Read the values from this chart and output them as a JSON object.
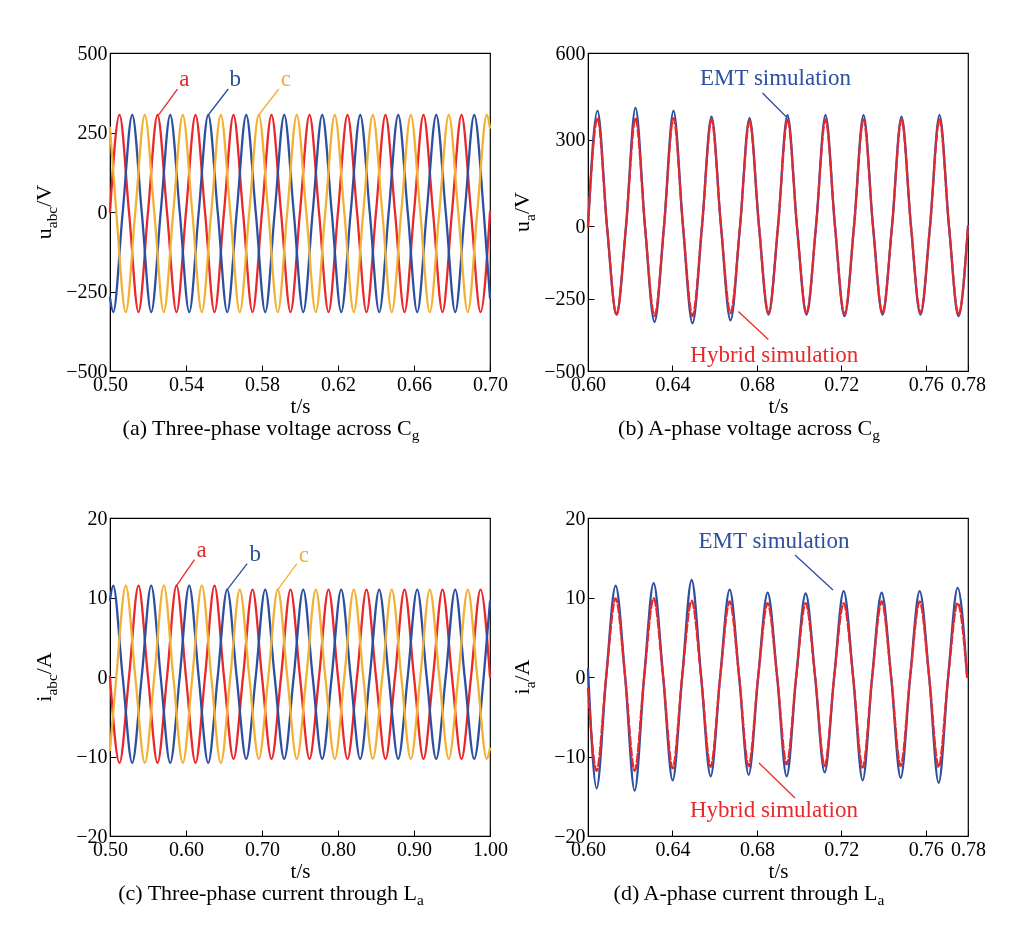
{
  "chart_data": [
    {
      "type": "line",
      "title": "(a) Three-phase voltage across C$_{g}$",
      "xlabel": "t/s",
      "ylabel": "u$_{abc}$/V",
      "xlim": [
        0.5,
        0.7
      ],
      "xticks": [
        {
          "value": 0.5,
          "label": "0.50"
        },
        0.54,
        0.58,
        0.62,
        0.66,
        {
          "value": 0.7,
          "label": "0.70"
        }
      ],
      "ylim": [
        -500,
        500
      ],
      "yticks": [
        {
          "value": -500,
          "label": "−500"
        },
        {
          "value": -250,
          "label": "−250"
        },
        0,
        250,
        500
      ],
      "series": [
        {
          "color": "#e8282a",
          "x": [
            0.5,
            0.505,
            0.51,
            0.515,
            0.52,
            0.525,
            0.53,
            0.535,
            0.54,
            0.545,
            0.55,
            0.555,
            0.56,
            0.565,
            0.57,
            0.575,
            0.58,
            0.585,
            0.59,
            0.595,
            0.6,
            0.605,
            0.61,
            0.615,
            0.62,
            0.625,
            0.63,
            0.635,
            0.64,
            0.645,
            0.65,
            0.655,
            0.66,
            0.665,
            0.67,
            0.675,
            0.68,
            0.685,
            0.69,
            0.695,
            0.7
          ],
          "values": [
            0,
            305,
            0,
            -315,
            0,
            305,
            0,
            -315,
            0,
            305,
            0,
            -315,
            0,
            305,
            0,
            -315,
            0,
            305,
            0,
            -315,
            0,
            305,
            0,
            -315,
            0,
            305,
            0,
            -315,
            0,
            305,
            0,
            -315,
            0,
            305,
            0,
            -315,
            0,
            305,
            0,
            -315,
            0
          ]
        },
        {
          "color": "#2c4fa0",
          "x": [
            0.5,
            0.5017,
            0.5067,
            0.5117,
            0.5167,
            0.5217,
            0.5267,
            0.5317,
            0.5367,
            0.5417,
            0.5467,
            0.5517,
            0.5567,
            0.5617,
            0.5667,
            0.5717,
            0.5767,
            0.5817,
            0.5867,
            0.5917,
            0.5967,
            0.6017,
            0.6067,
            0.6117,
            0.6167,
            0.6217,
            0.6267,
            0.6317,
            0.6367,
            0.6417,
            0.6467,
            0.6517,
            0.6567,
            0.6617,
            0.6667,
            0.6717,
            0.6767,
            0.6817,
            0.6867,
            0.6917,
            0.6967,
            0.7
          ],
          "values": [
            -270,
            -315,
            0,
            305,
            0,
            -315,
            0,
            305,
            0,
            -315,
            0,
            305,
            0,
            -315,
            0,
            305,
            0,
            -315,
            0,
            305,
            0,
            -315,
            0,
            305,
            0,
            -315,
            0,
            305,
            0,
            -315,
            0,
            305,
            0,
            -315,
            0,
            305,
            0,
            -315,
            0,
            305,
            0,
            -270
          ]
        },
        {
          "color": "#f2b134",
          "x": [
            0.5,
            0.5033,
            0.5083,
            0.5133,
            0.5183,
            0.5233,
            0.5283,
            0.5333,
            0.5383,
            0.5433,
            0.5483,
            0.5533,
            0.5583,
            0.5633,
            0.5683,
            0.5733,
            0.5783,
            0.5833,
            0.5883,
            0.5933,
            0.5983,
            0.6033,
            0.6083,
            0.6133,
            0.6183,
            0.6233,
            0.6283,
            0.6333,
            0.6383,
            0.6433,
            0.6483,
            0.6533,
            0.6583,
            0.6633,
            0.6683,
            0.6733,
            0.6783,
            0.6833,
            0.6883,
            0.6933,
            0.6983,
            0.7
          ],
          "values": [
            265,
            0,
            -315,
            0,
            305,
            0,
            -315,
            0,
            305,
            0,
            -315,
            0,
            305,
            0,
            -315,
            0,
            305,
            0,
            -315,
            0,
            305,
            0,
            -315,
            0,
            305,
            0,
            -315,
            0,
            305,
            0,
            -315,
            0,
            305,
            0,
            -315,
            0,
            305,
            0,
            -315,
            0,
            305,
            265
          ]
        }
      ],
      "annotations": [
        {
          "text": "a",
          "x": 0.5255,
          "y": 305
        },
        {
          "text": "b",
          "x": 0.5517,
          "y": 305
        },
        {
          "text": "c",
          "x": 0.5783,
          "y": 305
        }
      ]
    },
    {
      "type": "line",
      "title": "(b) A-phase voltage across C$_{g}$",
      "xlabel": "t/s",
      "ylabel": "u$_{a}$/V",
      "xlim": [
        0.6,
        0.78
      ],
      "xticks": [
        {
          "value": 0.6,
          "label": "0.60"
        },
        0.64,
        0.68,
        0.72,
        0.76,
        0.78
      ],
      "ylim": [
        -500,
        600
      ],
      "yticks": [
        {
          "value": -500,
          "label": "−500"
        },
        {
          "value": -250,
          "label": "−250"
        },
        0,
        300,
        600
      ],
      "series": [
        {
          "color": "#2c4fa0",
          "line_style": "solid",
          "x": [
            0.6,
            0.6045,
            0.609,
            0.6135,
            0.618,
            0.6225,
            0.627,
            0.6315,
            0.636,
            0.6405,
            0.645,
            0.6495,
            0.654,
            0.6585,
            0.663,
            0.6675,
            0.672,
            0.6765,
            0.681,
            0.6855,
            0.69,
            0.6945,
            0.699,
            0.7035,
            0.708,
            0.7125,
            0.717,
            0.7215,
            0.726,
            0.7305,
            0.735,
            0.7395,
            0.744,
            0.7485,
            0.753,
            0.7575,
            0.762,
            0.7665,
            0.771,
            0.7755,
            0.78
          ],
          "values": [
            0,
            400,
            0,
            -305,
            0,
            410,
            0,
            -330,
            0,
            400,
            0,
            -335,
            0,
            380,
            0,
            -325,
            0,
            375,
            0,
            -305,
            0,
            385,
            0,
            -305,
            0,
            385,
            0,
            -310,
            0,
            385,
            0,
            -305,
            0,
            380,
            0,
            -305,
            0,
            385,
            0,
            -310,
            0
          ]
        },
        {
          "color": "#e8282a",
          "line_style": "dashed",
          "x": [
            0.6,
            0.6045,
            0.609,
            0.6135,
            0.618,
            0.6225,
            0.627,
            0.6315,
            0.636,
            0.6405,
            0.645,
            0.6495,
            0.654,
            0.6585,
            0.663,
            0.6675,
            0.672,
            0.6765,
            0.681,
            0.6855,
            0.69,
            0.6945,
            0.699,
            0.7035,
            0.708,
            0.7125,
            0.717,
            0.7215,
            0.726,
            0.7305,
            0.735,
            0.7395,
            0.744,
            0.7485,
            0.753,
            0.7575,
            0.762,
            0.7665,
            0.771,
            0.7755,
            0.78
          ],
          "values": [
            0,
            375,
            0,
            -305,
            0,
            375,
            0,
            -310,
            0,
            375,
            0,
            -310,
            0,
            370,
            0,
            -300,
            0,
            365,
            0,
            -300,
            0,
            370,
            0,
            -300,
            0,
            370,
            0,
            -305,
            0,
            370,
            0,
            -300,
            0,
            370,
            0,
            -300,
            0,
            370,
            0,
            -305,
            0
          ]
        }
      ],
      "annotations": [
        {
          "text": "EMT  simulation",
          "x": 0.6945,
          "y": 375
        },
        {
          "text": "Hybrid  simulation",
          "x": 0.6712,
          "y": -294
        }
      ]
    },
    {
      "type": "line",
      "title": "(c) Three-phase current through L$_{a}$",
      "xlabel": "t/s",
      "ylabel": "i$_{abc}$/A",
      "xlim": [
        0.5,
        1.0
      ],
      "xticks": [
        {
          "value": 0.5,
          "label": "0.50"
        },
        {
          "value": 0.6,
          "label": "0.60"
        },
        {
          "value": 0.7,
          "label": "0.70"
        },
        {
          "value": 0.8,
          "label": "0.80"
        },
        {
          "value": 0.9,
          "label": "0.90"
        },
        {
          "value": 1.0,
          "label": "1.00"
        }
      ],
      "ylim": [
        -20,
        20
      ],
      "yticks": [
        {
          "value": -20,
          "label": "−20"
        },
        {
          "value": -10,
          "label": "−10"
        },
        0,
        10,
        20
      ],
      "series": [
        {
          "color": "#e8282a",
          "x": [
            0.5,
            0.5125,
            0.525,
            0.5375,
            0.55,
            0.5625,
            0.575,
            0.5875,
            0.6,
            0.6125,
            0.625,
            0.6375,
            0.65,
            0.6625,
            0.675,
            0.6875,
            0.7,
            0.7125,
            0.725,
            0.7375,
            0.75,
            0.7625,
            0.775,
            0.7875,
            0.8,
            0.8125,
            0.825,
            0.8375,
            0.85,
            0.8625,
            0.875,
            0.8875,
            0.9,
            0.9125,
            0.925,
            0.9375,
            0.95,
            0.9625,
            0.975,
            0.9875,
            1.0
          ],
          "values": [
            0,
            -10.8,
            0,
            11.5,
            0,
            -10.8,
            0,
            11.5,
            0,
            -10.8,
            0,
            11.5,
            0,
            -10.3,
            0,
            11,
            0,
            -10.3,
            0,
            11,
            0,
            -10.3,
            0,
            11,
            0,
            -10.3,
            0,
            11,
            0,
            -10.3,
            0,
            11,
            0,
            -10.3,
            0,
            11,
            0,
            -10.3,
            0,
            11,
            0
          ]
        },
        {
          "color": "#2c4fa0",
          "x": [
            0.5,
            0.5042,
            0.5167,
            0.5292,
            0.5417,
            0.5542,
            0.5667,
            0.5792,
            0.5917,
            0.6042,
            0.6167,
            0.6292,
            0.6417,
            0.6542,
            0.6667,
            0.6792,
            0.6917,
            0.7042,
            0.7167,
            0.7292,
            0.7417,
            0.7542,
            0.7667,
            0.7792,
            0.7917,
            0.8042,
            0.8167,
            0.8292,
            0.8417,
            0.8542,
            0.8667,
            0.8792,
            0.8917,
            0.9042,
            0.9167,
            0.9292,
            0.9417,
            0.9542,
            0.9667,
            0.9792,
            0.9917,
            1.0
          ],
          "values": [
            9.7,
            11.5,
            0,
            -10.8,
            0,
            11.5,
            0,
            -10.8,
            0,
            11.5,
            0,
            -10.8,
            0,
            11,
            0,
            -10.3,
            0,
            11,
            0,
            -10.3,
            0,
            11,
            0,
            -10.3,
            0,
            11,
            0,
            -10.3,
            0,
            11,
            0,
            -10.3,
            0,
            11,
            0,
            -10.3,
            0,
            11,
            0,
            -10.3,
            0,
            9.5
          ]
        },
        {
          "color": "#f2b134",
          "x": [
            0.5,
            0.5083,
            0.5208,
            0.5333,
            0.5458,
            0.5583,
            0.5708,
            0.5833,
            0.5958,
            0.6083,
            0.6208,
            0.6333,
            0.6458,
            0.6583,
            0.6708,
            0.6833,
            0.6958,
            0.7083,
            0.7208,
            0.7333,
            0.7458,
            0.7583,
            0.7708,
            0.7833,
            0.7958,
            0.8083,
            0.8208,
            0.8333,
            0.8458,
            0.8583,
            0.8708,
            0.8833,
            0.8958,
            0.9083,
            0.9208,
            0.9333,
            0.9458,
            0.9583,
            0.9708,
            0.9833,
            0.9958,
            1.0
          ],
          "values": [
            -9.2,
            0,
            11.5,
            0,
            -10.8,
            0,
            11.5,
            0,
            -10.8,
            0,
            11.5,
            0,
            -10.8,
            0,
            11,
            0,
            -10.3,
            0,
            11,
            0,
            -10.3,
            0,
            11,
            0,
            -10.3,
            0,
            11,
            0,
            -10.3,
            0,
            11,
            0,
            -10.3,
            0,
            11,
            0,
            -10.3,
            0,
            11,
            0,
            -10.3,
            -9
          ]
        }
      ],
      "annotations": [
        {
          "text": "a",
          "x": 0.5875,
          "y": 11.5
        },
        {
          "text": "b",
          "x": 0.6542,
          "y": 11
        },
        {
          "text": "c",
          "x": 0.7208,
          "y": 11
        }
      ]
    },
    {
      "type": "line",
      "title": "(d) A-phase current through L$_{a}$",
      "xlabel": "t/s",
      "ylabel": "i$_{a}$/A",
      "xlim": [
        0.6,
        0.78
      ],
      "xticks": [
        {
          "value": 0.6,
          "label": "0.60"
        },
        0.64,
        0.68,
        0.72,
        0.76,
        0.78
      ],
      "ylim": [
        -20,
        20
      ],
      "yticks": [
        {
          "value": -20,
          "label": "−20"
        },
        {
          "value": -10,
          "label": "−10"
        },
        0,
        10,
        20
      ],
      "series": [
        {
          "color": "#2c4fa0",
          "line_style": "solid",
          "x": [
            0.6,
            0.6041,
            0.6086,
            0.6131,
            0.6176,
            0.6221,
            0.6266,
            0.6311,
            0.6356,
            0.6401,
            0.6446,
            0.6491,
            0.6536,
            0.6581,
            0.6626,
            0.6671,
            0.6716,
            0.6761,
            0.6806,
            0.6851,
            0.6896,
            0.6941,
            0.6986,
            0.7031,
            0.7076,
            0.7121,
            0.7166,
            0.7211,
            0.7256,
            0.7301,
            0.7346,
            0.7391,
            0.7436,
            0.7481,
            0.7526,
            0.7571,
            0.7616,
            0.7661,
            0.7706,
            0.7751,
            0.7796
          ],
          "values": [
            1,
            -14,
            0,
            11.5,
            0,
            -14.3,
            0,
            11.8,
            0,
            -13,
            0,
            12.2,
            0,
            -12.5,
            0,
            11,
            0,
            -12.3,
            0,
            10.6,
            0,
            -12.5,
            0,
            10.5,
            0,
            -12,
            0,
            10.8,
            0,
            -13,
            0,
            10.6,
            0,
            -12.7,
            0,
            10.8,
            0,
            -13.3,
            0,
            11.2,
            0
          ]
        },
        {
          "color": "#e8282a",
          "line_style": "dashed",
          "x": [
            0.6,
            0.6041,
            0.6086,
            0.6131,
            0.6176,
            0.6221,
            0.6266,
            0.6311,
            0.6356,
            0.6401,
            0.6446,
            0.6491,
            0.6536,
            0.6581,
            0.6626,
            0.6671,
            0.6716,
            0.6761,
            0.6806,
            0.6851,
            0.6896,
            0.6941,
            0.6986,
            0.7031,
            0.7076,
            0.7121,
            0.7166,
            0.7211,
            0.7256,
            0.7301,
            0.7346,
            0.7391,
            0.7436,
            0.7481,
            0.7526,
            0.7571,
            0.7616,
            0.7661,
            0.7706,
            0.7751,
            0.7796
          ],
          "values": [
            -1.5,
            -11.8,
            0,
            9.9,
            0,
            -11.8,
            0,
            9.9,
            0,
            -11.5,
            0,
            9.6,
            0,
            -11.3,
            0,
            9.5,
            0,
            -11.2,
            0,
            9.3,
            0,
            -11,
            0,
            9.3,
            0,
            -11.2,
            0,
            9.3,
            0,
            -11.4,
            0,
            9.5,
            0,
            -11.2,
            0,
            9.5,
            0,
            -11.3,
            0,
            9.3,
            0
          ]
        }
      ],
      "annotations": [
        "EMT  simulation",
        "Hybrid  simulation"
      ]
    }
  ]
}
